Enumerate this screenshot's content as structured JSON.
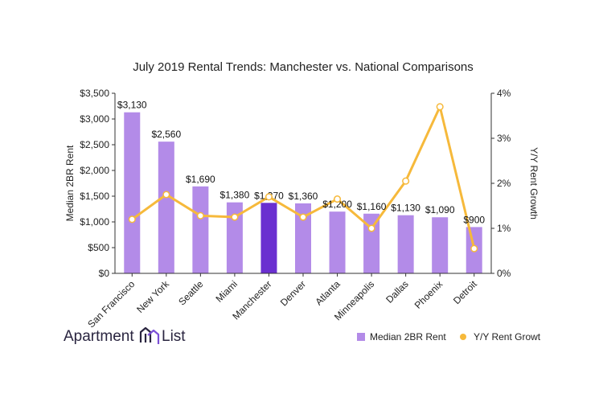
{
  "colors": {
    "bar": "#b38be8",
    "bar_highlight": "#6a2fd0",
    "line": "#f6b93b",
    "marker_fill": "#ffffff",
    "brand": "#2a2540"
  },
  "brand": {
    "name_left": "Apartment",
    "name_right": "List",
    "icon": "apartment-list-logo-icon"
  },
  "chart_data": {
    "type": "bar",
    "title": "July 2019 Rental Trends: Manchester vs. National Comparisons",
    "categories": [
      "San Francisco",
      "New York",
      "Seattle",
      "Miami",
      "Manchester",
      "Denver",
      "Atlanta",
      "Minneapolis",
      "Dallas",
      "Phoenix",
      "Detroit"
    ],
    "highlight_category": "Manchester",
    "series": [
      {
        "name": "Median 2BR Rent",
        "type": "bar",
        "axis": "left",
        "values": [
          3130,
          2560,
          1690,
          1380,
          1370,
          1360,
          1200,
          1160,
          1130,
          1090,
          900
        ],
        "labels": [
          "$3,130",
          "$2,560",
          "$1,690",
          "$1,380",
          "$1,370",
          "$1,360",
          "$1,200",
          "$1,160",
          "$1,130",
          "$1,090",
          "$900"
        ]
      },
      {
        "name": "Y/Y Rent Growt",
        "type": "line",
        "axis": "right",
        "values": [
          1.2,
          1.75,
          1.28,
          1.25,
          1.7,
          1.25,
          1.65,
          1.0,
          2.05,
          3.7,
          0.55
        ]
      }
    ],
    "ylabel": "Median 2BR Rent",
    "y2label": "Y/Y Rent Growth",
    "ylim": [
      0,
      3500
    ],
    "y2lim": [
      0,
      4
    ],
    "yticks": [
      "$0",
      "$500",
      "$1,000",
      "$1,500",
      "$2,000",
      "$2,500",
      "$3,000",
      "$3,500"
    ],
    "y2ticks": [
      "0%",
      "1%",
      "2%",
      "3%",
      "4%"
    ],
    "legend_position": "bottom-right",
    "grid": false
  }
}
